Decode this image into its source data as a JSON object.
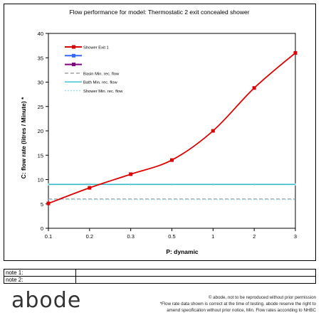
{
  "chart_data": {
    "type": "line",
    "title": "Flow performance for model: Thermostatic 2 exit concealed shower",
    "xlabel": "P: dynamic",
    "ylabel": "C: flow rate (litres / Minute) *",
    "x_ticks": [
      "0.1",
      "0.2",
      "0.3",
      "0.5",
      "1",
      "2",
      "3"
    ],
    "x_scale": "categorical (log-like)",
    "ylim": [
      0,
      40
    ],
    "y_ticks": [
      0,
      5,
      10,
      15,
      20,
      25,
      30,
      35,
      40
    ],
    "grid": false,
    "legend_position": "top-left",
    "series": [
      {
        "name": "Shower Exit 1",
        "color": "#dd0000",
        "marker": "square",
        "x": [
          "0.1",
          "0.2",
          "0.3",
          "0.5",
          "1",
          "2",
          "3"
        ],
        "y": [
          5.1,
          8.3,
          11.1,
          14.0,
          20.0,
          28.8,
          36.0
        ]
      },
      {
        "name": "",
        "color": "#3366ff",
        "marker": "square",
        "x": [],
        "y": []
      },
      {
        "name": "",
        "color": "#800080",
        "marker": "square",
        "x": [],
        "y": []
      },
      {
        "name": "Basin Min. rec. flow",
        "color": "#999999",
        "dash": "dashed",
        "constant": 6
      },
      {
        "name": "Bath Min. rec. flow",
        "color": "#33bbcc",
        "constant": 9
      },
      {
        "name": "Shower Min. rec. flow",
        "color": "#99e6f0",
        "dash": "dotted",
        "constant": 6
      }
    ]
  },
  "notes": [
    {
      "label": "note 1:",
      "value": ""
    },
    {
      "label": "note 2:",
      "value": ""
    }
  ],
  "brand": {
    "logo": "abode"
  },
  "footer": {
    "line1": "© abode, not to be reproduced without prior permission",
    "line2": "*Flow rate data shown is correct at the time of testing. abode reserve the right to",
    "line3": "amend specification without prior notice, Min. Flow rates accoriding to NHBC"
  }
}
